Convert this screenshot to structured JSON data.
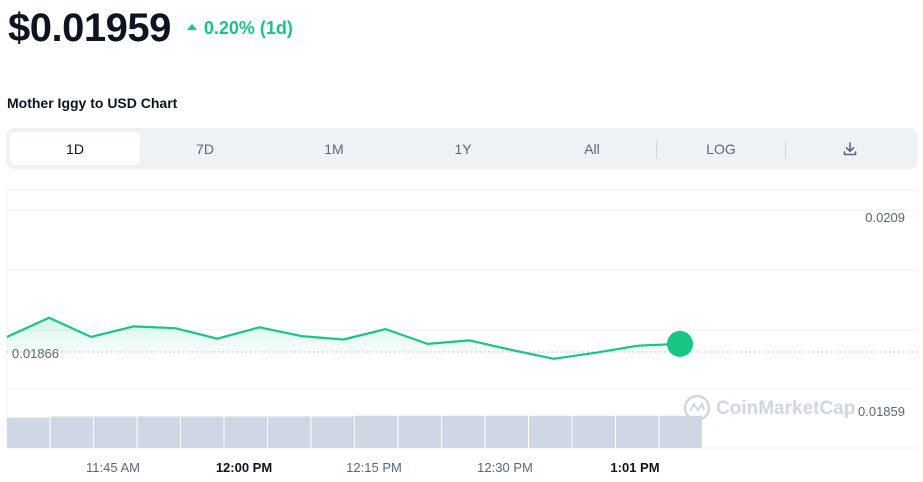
{
  "price": {
    "value": "$0.01959",
    "change": "0.20% (1d)",
    "direction": "up",
    "color_up": "#16c784"
  },
  "chart_title": "Mother Iggy to USD Chart",
  "range_tabs": [
    {
      "label": "1D",
      "active": true
    },
    {
      "label": "7D",
      "active": false
    },
    {
      "label": "1M",
      "active": false
    },
    {
      "label": "1Y",
      "active": false
    },
    {
      "label": "All",
      "active": false
    }
  ],
  "scale_toggle": {
    "label": "LOG"
  },
  "download_icon": "download-icon",
  "watermark": "CoinMarketCap",
  "chart_data": {
    "type": "area",
    "title": "Mother Iggy to USD Chart",
    "x_ticks": [
      {
        "label": "11:45 AM",
        "bold": false
      },
      {
        "label": "12:00 PM",
        "bold": true
      },
      {
        "label": "12:15 PM",
        "bold": false
      },
      {
        "label": "12:30 PM",
        "bold": false
      },
      {
        "label": "1:01 PM",
        "bold": true
      }
    ],
    "y_ticks": [
      "0.0209",
      "0.01859"
    ],
    "reference_line": {
      "label": "0.01866",
      "value": 0.01866
    },
    "series": [
      {
        "values": [
          0.01954,
          0.01976,
          0.01954,
          0.01966,
          0.01964,
          0.01952,
          0.01965,
          0.01955,
          0.01951,
          0.01963,
          0.01946,
          0.0195,
          0.01939,
          0.01929,
          0.01936,
          0.01944,
          0.01946
        ],
        "color": "#16c784"
      }
    ],
    "volume": [
      0.8,
      0.83,
      0.83,
      0.83,
      0.83,
      0.83,
      0.83,
      0.83,
      0.85,
      0.85,
      0.85,
      0.85,
      0.85,
      0.85,
      0.85,
      0.85
    ],
    "volume_color": "#cfd6e4",
    "ylim": [
      0.01859,
      0.0209
    ],
    "grid": true
  }
}
